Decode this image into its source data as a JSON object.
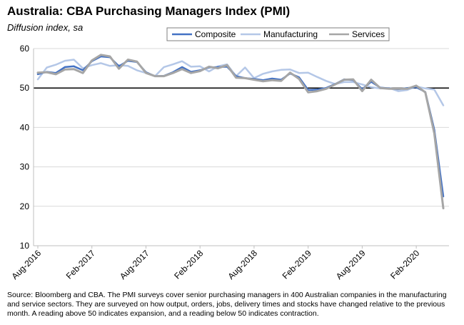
{
  "header": {
    "title": "Australia: CBA Purchasing Managers Index (PMI)",
    "subtitle": "Diffusion index, sa"
  },
  "source": "Source: Bloomberg and CBA.  The PMI surveys cover senior purchasing managers in 400 Australian companies in the manufacturing and service sectors.  They are surveyed on how output, orders, jobs, delivery times and stocks have changed relative to the previous month.  A reading above 50 indicates expansion, and a reading below 50 indicates contraction.",
  "colors": {
    "composite": "#4472c4",
    "manufacturing": "#b4c7e7",
    "services": "#a6a6a6"
  },
  "chart_data": {
    "type": "line",
    "title": "Australia: CBA Purchasing Managers Index (PMI)",
    "ylabel": "Diffusion index, sa",
    "xlabel": "",
    "ylim": [
      10,
      60
    ],
    "yticks": [
      10,
      20,
      30,
      40,
      50,
      60
    ],
    "reference_line": 50,
    "legend_position": "top-right",
    "x_tick_labels": [
      {
        "index": 0,
        "label": "Aug-2016"
      },
      {
        "index": 6,
        "label": "Feb-2017"
      },
      {
        "index": 12,
        "label": "Aug-2017"
      },
      {
        "index": 18,
        "label": "Feb-2018"
      },
      {
        "index": 24,
        "label": "Aug-2018"
      },
      {
        "index": 30,
        "label": "Feb-2019"
      },
      {
        "index": 36,
        "label": "Aug-2019"
      },
      {
        "index": 42,
        "label": "Feb-2020"
      }
    ],
    "series": [
      {
        "name": "Composite",
        "key": "composite",
        "values": [
          53.5,
          54.1,
          53.8,
          55.3,
          55.5,
          54.5,
          56.8,
          58.0,
          57.8,
          55.5,
          56.9,
          56.6,
          54.0,
          53.0,
          53.1,
          54.0,
          55.3,
          54.1,
          54.5,
          55.2,
          55.3,
          55.4,
          53.0,
          52.5,
          52.3,
          52.0,
          52.4,
          52.1,
          53.7,
          52.7,
          49.5,
          49.6,
          50.0,
          51.0,
          52.2,
          52.0,
          49.7,
          51.6,
          50.1,
          49.9,
          49.7,
          50.0,
          50.2,
          49.0,
          39.4,
          22.5
        ]
      },
      {
        "name": "Manufacturing",
        "key": "manufacturing",
        "values": [
          52.2,
          55.2,
          55.9,
          56.9,
          57.2,
          55.0,
          55.8,
          56.3,
          55.6,
          55.8,
          55.6,
          54.5,
          53.8,
          53.0,
          55.3,
          56.0,
          56.8,
          55.4,
          55.5,
          54.2,
          55.5,
          56.0,
          53.0,
          55.2,
          52.5,
          53.6,
          54.2,
          54.6,
          54.7,
          53.8,
          53.9,
          52.8,
          51.8,
          51.0,
          51.5,
          51.5,
          50.9,
          50.2,
          49.9,
          50.0,
          49.2,
          49.5,
          50.4,
          49.9,
          49.6,
          45.6
        ]
      },
      {
        "name": "Services",
        "key": "services",
        "values": [
          53.9,
          54.0,
          53.5,
          54.7,
          54.8,
          53.8,
          57.0,
          58.4,
          58.0,
          54.9,
          57.2,
          56.7,
          53.8,
          53.0,
          53.0,
          53.8,
          54.8,
          53.8,
          54.3,
          55.4,
          55.0,
          55.8,
          52.6,
          52.5,
          52.1,
          51.7,
          52.0,
          51.8,
          53.9,
          52.3,
          48.9,
          49.2,
          49.8,
          50.9,
          52.1,
          52.2,
          49.2,
          52.1,
          50.0,
          49.8,
          49.8,
          49.8,
          50.6,
          48.9,
          38.5,
          19.5
        ]
      }
    ]
  }
}
